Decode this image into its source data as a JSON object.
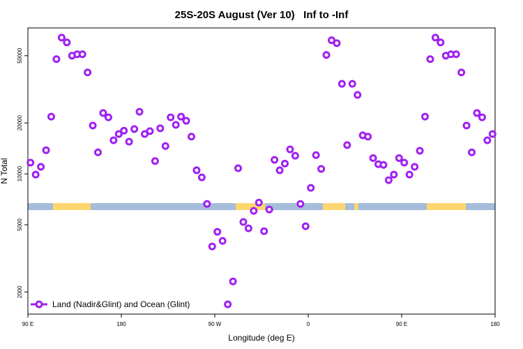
{
  "chart_data": {
    "type": "scatter",
    "title": "25S-20S August (Ver 10)   Inf to -Inf",
    "xlabel": "Longitude (deg E)",
    "ylabel": "N Total",
    "x": [
      92.5,
      97.5,
      102.5,
      107.5,
      112.5,
      117.5,
      122.5,
      127.5,
      132.5,
      137.5,
      142.5,
      147.5,
      152.5,
      157.5,
      162.5,
      167.5,
      172.5,
      177.5,
      182.5,
      187.5,
      192.5,
      197.5,
      202.5,
      207.5,
      212.5,
      217.5,
      222.5,
      227.5,
      232.5,
      237.5,
      242.5,
      247.5,
      252.5,
      257.5,
      262.5,
      267.5,
      272.5,
      277.5,
      282.5,
      287.5,
      292.5,
      297.5,
      302.5,
      307.5,
      312.5,
      317.5,
      322.5,
      327.5,
      332.5,
      337.5,
      342.5,
      347.5,
      352.5,
      357.5,
      362.5,
      367.5,
      372.5,
      377.5,
      382.5,
      387.5,
      392.5,
      397.5,
      402.5,
      407.5,
      412.5,
      417.5,
      422.5,
      427.5,
      432.5,
      437.5,
      442.5,
      447.5,
      452.5,
      457.5,
      462.5,
      467.5,
      472.5,
      477.5,
      482.5,
      487.5,
      492.5,
      497.5,
      502.5,
      507.5,
      512.5,
      517.5,
      522.5,
      527.5,
      532.5,
      537.5
    ],
    "series": [
      {
        "name": "Land (Nadir&Glint) and Ocean (Glint)",
        "color": "#a020f0",
        "values": [
          11650,
          9900,
          11000,
          13800,
          21800,
          47700,
          64000,
          59900,
          50000,
          51000,
          51000,
          39800,
          19300,
          13400,
          22900,
          21600,
          15800,
          17200,
          18000,
          15500,
          18400,
          23300,
          17200,
          17900,
          11900,
          18600,
          14600,
          21600,
          19500,
          21800,
          20600,
          16600,
          10500,
          9530,
          6640,
          3720,
          4540,
          4010,
          1690,
          2310,
          10800,
          5190,
          4760,
          6040,
          6760,
          4580,
          6150,
          12100,
          10500,
          11500,
          13950,
          12800,
          6640,
          4900,
          8260,
          12900,
          10700,
          50500,
          61700,
          59300,
          34100,
          14800,
          34100,
          29300,
          16900,
          16600,
          12400,
          11400,
          11300,
          9180,
          9900,
          12400,
          11650,
          9900,
          11000,
          13700,
          21800,
          47700,
          64000,
          59900,
          50000,
          51000,
          51000,
          39800,
          19300,
          13400,
          22900,
          21600,
          15800,
          17200
        ]
      }
    ],
    "xlim": [
      90,
      540
    ],
    "ylim": [
      1480,
      73000
    ],
    "yscale": "log",
    "xticks": [
      {
        "value": 90,
        "label": "90 E"
      },
      180,
      {
        "value": 270,
        "label": "90 W"
      },
      {
        "value": 360,
        "label": "0"
      },
      {
        "value": 450,
        "label": "90 E"
      },
      {
        "value": 540,
        "label": "180"
      }
    ],
    "yticks": [
      2000,
      5000,
      10000,
      20000,
      50000
    ],
    "legend": "bottom-left"
  }
}
